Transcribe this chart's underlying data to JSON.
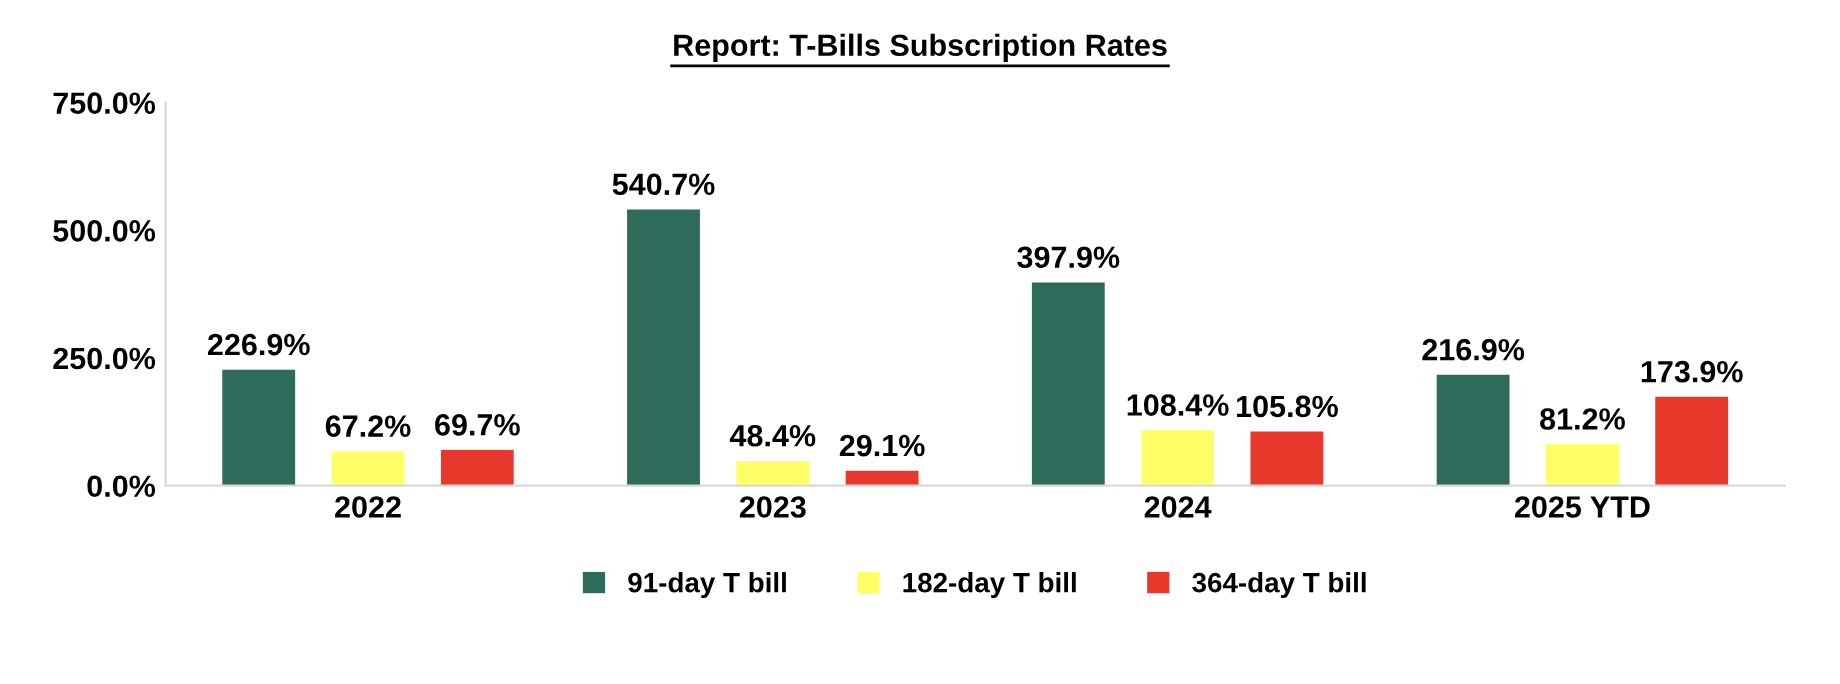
{
  "chart_data": {
    "type": "bar",
    "title": "Report: T-Bills Subscription Rates",
    "categories": [
      "2022",
      "2023",
      "2024",
      "2025 YTD"
    ],
    "series": [
      {
        "name": "91-day T bill",
        "color": "#2e6b5a",
        "values": [
          226.9,
          540.7,
          397.9,
          216.9
        ],
        "value_labels": [
          "226.9%",
          "540.7%",
          "397.9%",
          "216.9%"
        ]
      },
      {
        "name": "182-day T bill",
        "color": "#ffff66",
        "values": [
          67.2,
          48.4,
          108.4,
          81.2
        ],
        "value_labels": [
          "67.2%",
          "48.4%",
          "108.4%",
          "81.2%"
        ]
      },
      {
        "name": "364-day T bill",
        "color": "#e8372b",
        "values": [
          69.7,
          29.1,
          105.8,
          173.9
        ],
        "value_labels": [
          "69.7%",
          "29.1%",
          "105.8%",
          "173.9%"
        ]
      }
    ],
    "ylim": [
      0,
      750
    ],
    "yticks": [
      {
        "value": 0,
        "label": "0.0%"
      },
      {
        "value": 250,
        "label": "250.0%"
      },
      {
        "value": 500,
        "label": "500.0%"
      },
      {
        "value": 750,
        "label": "750.0%"
      }
    ],
    "grid": false,
    "legend": "bottom"
  }
}
